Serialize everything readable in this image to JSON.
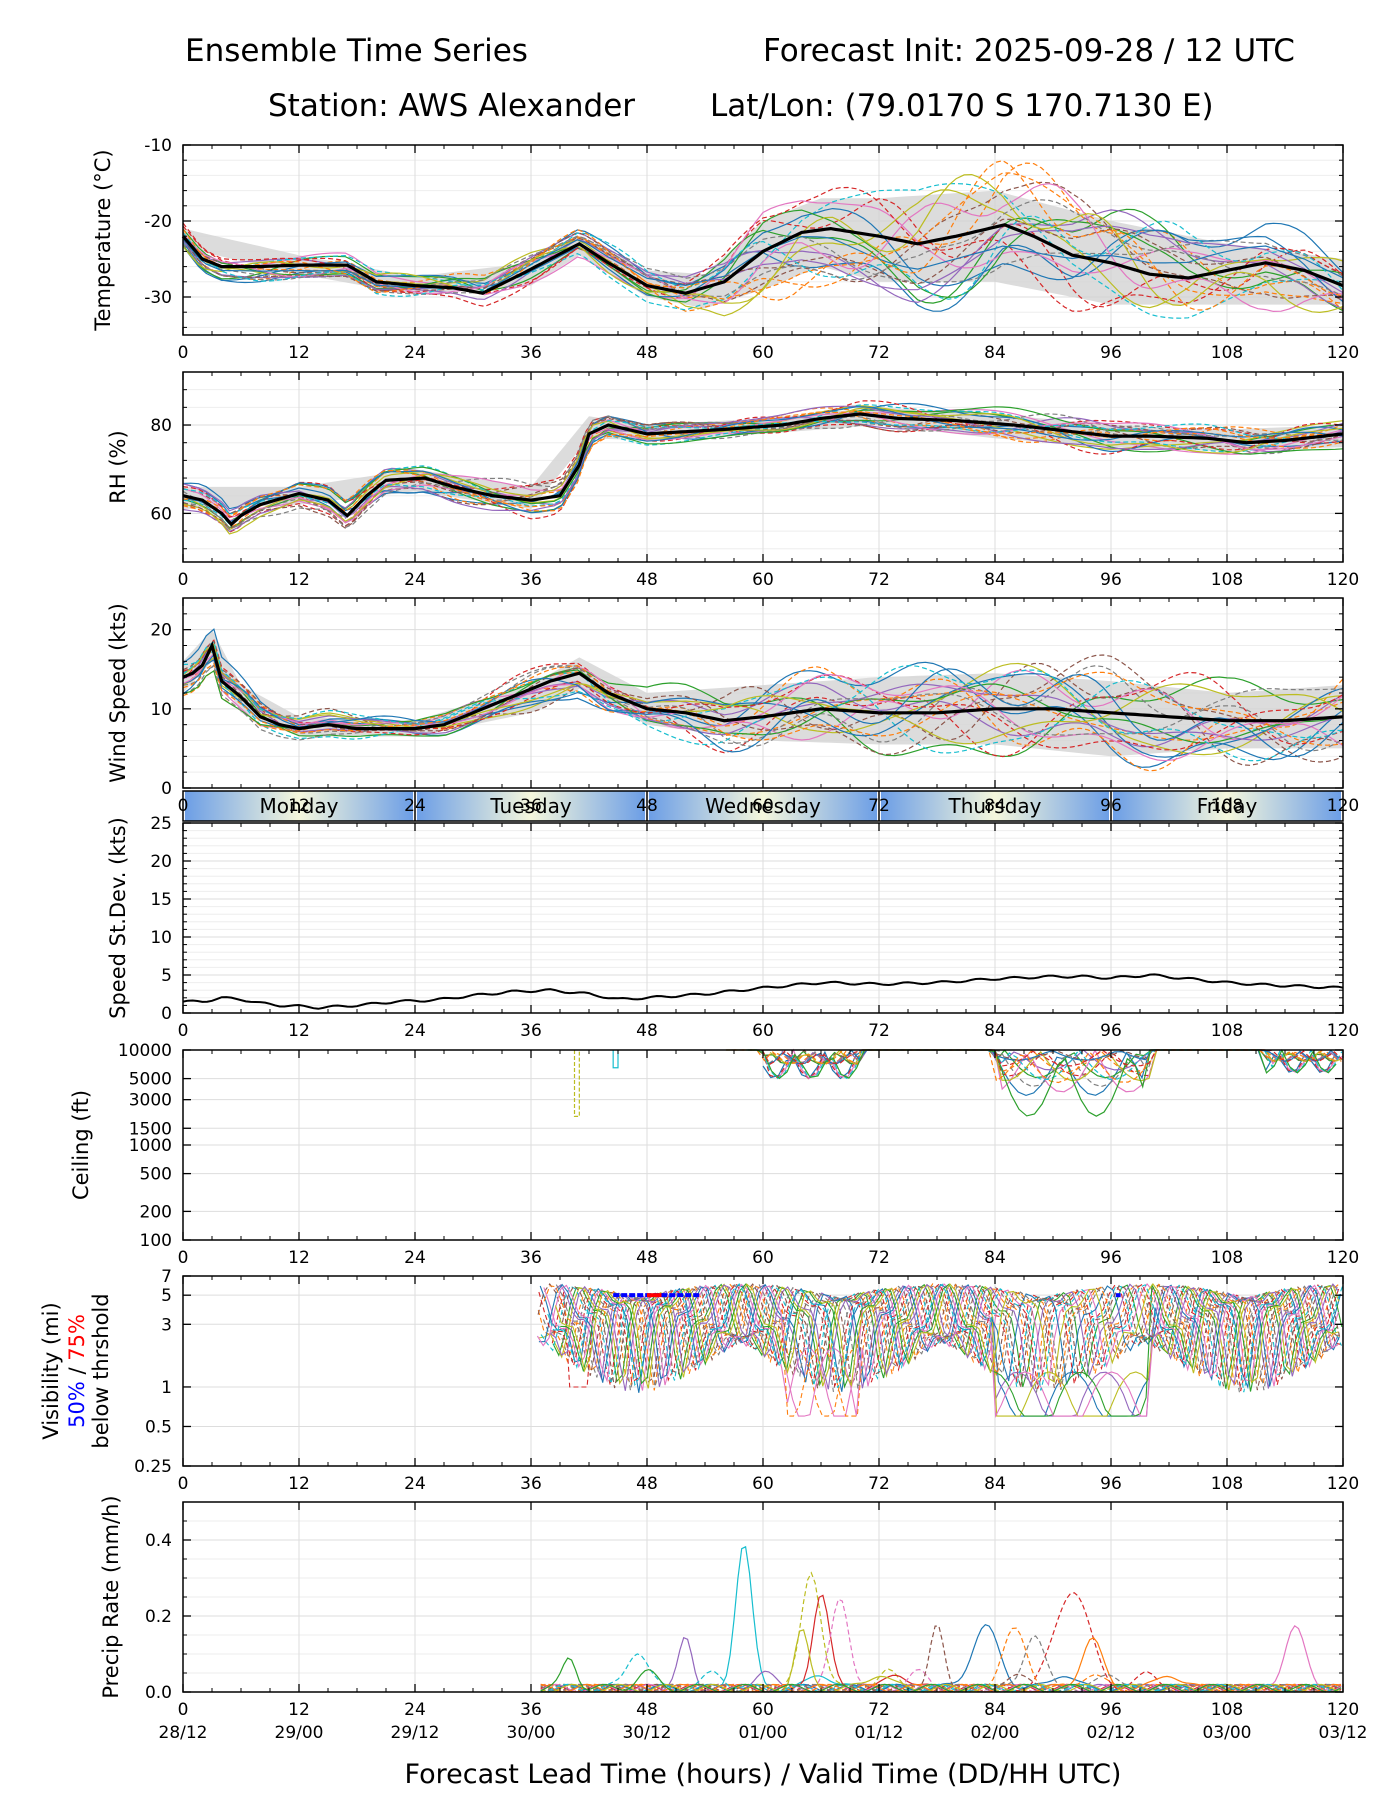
{
  "header": {
    "title": "Ensemble Time Series",
    "init": "Forecast Init: 2025-09-28 / 12 UTC",
    "station": "Station: AWS Alexander",
    "latlon": "Lat/Lon: (79.0170 S 170.7130 E)"
  },
  "x_axis": {
    "range": [
      0,
      120
    ],
    "lead_ticks": [
      "0",
      "12",
      "24",
      "36",
      "48",
      "60",
      "72",
      "84",
      "96",
      "108",
      "120"
    ],
    "valid_ticks": [
      "28/12",
      "29/00",
      "29/12",
      "30/00",
      "30/12",
      "01/00",
      "01/12",
      "02/00",
      "02/12",
      "03/00",
      "03/12"
    ],
    "title": "Forecast Lead Time (hours) / Valid Time (DD/HH UTC)"
  },
  "day_strip": [
    "Monday",
    "Tuesday",
    "Wednesday",
    "Thursday",
    "Friday"
  ],
  "colors": {
    "mean": "#000000",
    "spread": "#d3d3d3",
    "grid": "#dddddd",
    "p50": "#0000ff",
    "p75": "#ff0000",
    "day_edge": "#6c9ee6",
    "day_center": "#f5f7dc"
  },
  "chart_data": [
    {
      "id": "temperature",
      "type": "line",
      "ylabel": "Temperature (°C)",
      "ylim": [
        -35,
        -10
      ],
      "yticks": [
        "-10",
        "-20",
        "-30"
      ],
      "ensemble_mean": {
        "x": [
          0,
          2,
          4,
          8,
          12,
          17,
          20,
          24,
          28,
          31,
          35,
          38,
          41,
          44,
          48,
          52,
          56,
          60,
          64,
          67,
          72,
          76,
          80,
          85,
          88,
          92,
          96,
          100,
          104,
          108,
          112,
          116,
          120
        ],
        "y": [
          -22,
          -25,
          -26,
          -26,
          -25.8,
          -25.8,
          -28,
          -28.5,
          -28.8,
          -29.5,
          -27,
          -25,
          -23,
          -25.5,
          -28.5,
          -29.5,
          -28,
          -24,
          -21.5,
          -21,
          -22,
          -23,
          -22,
          -20.5,
          -22,
          -24.5,
          -25.5,
          -27,
          -27.5,
          -26.5,
          -25.5,
          -26.5,
          -28.5
        ]
      },
      "spread_upper": {
        "x": [
          0,
          12,
          24,
          36,
          41,
          48,
          54,
          60,
          66,
          72,
          84,
          96,
          108,
          120
        ],
        "y": [
          -21,
          -24.5,
          -27.3,
          -25.5,
          -22,
          -26.5,
          -27,
          -20,
          -17,
          -17,
          -16,
          -20,
          -23,
          -25
        ]
      },
      "spread_lower": {
        "x": [
          0,
          12,
          24,
          36,
          41,
          48,
          54,
          60,
          66,
          72,
          84,
          96,
          108,
          120
        ],
        "y": [
          -23.5,
          -27,
          -29.7,
          -28.5,
          -24.5,
          -30,
          -31.5,
          -29,
          -26,
          -28,
          -28,
          -31,
          -31,
          -31
        ]
      }
    },
    {
      "id": "rh",
      "type": "line",
      "ylabel": "RH (%)",
      "ylim": [
        49,
        92
      ],
      "yticks": [
        "60",
        "80"
      ],
      "ensemble_mean": {
        "x": [
          0,
          2,
          4,
          5,
          6,
          8,
          12,
          15,
          17,
          19,
          21,
          25,
          28,
          32,
          36,
          39,
          41,
          42,
          44,
          48,
          56,
          62,
          66,
          70,
          74,
          80,
          86,
          90,
          96,
          100,
          106,
          110,
          114,
          120
        ],
        "y": [
          64,
          63,
          60,
          57.5,
          59.5,
          62,
          64.5,
          63,
          59.5,
          64,
          67.5,
          68,
          66,
          64,
          63,
          64,
          71,
          78,
          80,
          78,
          79,
          80,
          81.5,
          82.5,
          81.5,
          81,
          80,
          79,
          77.5,
          77.5,
          77,
          76,
          76.5,
          78
        ]
      },
      "spread_upper": {
        "x": [
          0,
          12,
          24,
          36,
          42,
          48,
          60,
          72,
          84,
          96,
          108,
          120
        ],
        "y": [
          66,
          66,
          70,
          66,
          82,
          80,
          81.5,
          84,
          82.5,
          80,
          79,
          80
        ]
      },
      "spread_lower": {
        "x": [
          0,
          12,
          24,
          36,
          42,
          48,
          60,
          72,
          84,
          96,
          108,
          120
        ],
        "y": [
          61,
          62,
          65,
          61,
          77,
          76.5,
          78,
          80,
          77,
          75,
          74,
          75
        ]
      }
    },
    {
      "id": "wind_speed",
      "type": "line",
      "ylabel": "Wind Speed (kts)",
      "ylim": [
        0,
        24
      ],
      "yticks": [
        "0",
        "10",
        "20"
      ],
      "ensemble_mean": {
        "x": [
          0,
          1,
          2,
          3,
          4,
          6,
          8,
          10,
          12,
          15,
          18,
          21,
          24,
          27,
          30,
          34,
          38,
          41,
          44,
          48,
          52,
          56,
          60,
          66,
          72,
          78,
          84,
          90,
          96,
          102,
          108,
          114,
          120
        ],
        "y": [
          14,
          14.5,
          15.5,
          18,
          13.5,
          11.5,
          9,
          8,
          7.5,
          8,
          7.5,
          7.5,
          7.5,
          8,
          9.5,
          11.5,
          13.5,
          14.5,
          12,
          10,
          9.5,
          8.5,
          9,
          10,
          9.5,
          9.5,
          10,
          10,
          9.5,
          9,
          8.5,
          8.5,
          9
        ]
      },
      "spread_upper": {
        "x": [
          0,
          3,
          6,
          12,
          24,
          36,
          41,
          48,
          60,
          72,
          84,
          96,
          108,
          120
        ],
        "y": [
          16,
          20,
          13,
          9,
          8.5,
          13,
          16.5,
          12,
          13,
          14,
          14.5,
          13.5,
          12,
          13
        ]
      },
      "spread_lower": {
        "x": [
          0,
          3,
          6,
          12,
          24,
          36,
          41,
          48,
          60,
          72,
          84,
          96,
          108,
          120
        ],
        "y": [
          12,
          16,
          9.5,
          6.5,
          6.5,
          9.5,
          12.5,
          8,
          6,
          5.5,
          5.5,
          4,
          5,
          5
        ]
      }
    },
    {
      "id": "speed_stdev",
      "type": "line",
      "ylabel": "Speed St.Dev. (kts)",
      "ylim": [
        0,
        25
      ],
      "yticks": [
        "0",
        "5",
        "10",
        "15",
        "20",
        "25"
      ],
      "series": {
        "x": [
          0,
          2,
          4,
          6,
          8,
          10,
          12,
          14,
          18,
          22,
          26,
          30,
          34,
          38,
          42,
          45,
          48,
          54,
          60,
          66,
          72,
          78,
          84,
          90,
          93,
          96,
          100,
          104,
          108,
          112,
          116,
          120
        ],
        "y": [
          1.5,
          1.5,
          2,
          1.8,
          1.3,
          1,
          0.9,
          0.7,
          1,
          1.5,
          1.7,
          2.3,
          2.8,
          3,
          2.5,
          1.8,
          2,
          2.5,
          3.3,
          4,
          3.8,
          4,
          4.5,
          4.8,
          4.8,
          4.6,
          5,
          4.5,
          4,
          3.7,
          3.5,
          3.3
        ]
      }
    },
    {
      "id": "ceiling",
      "type": "line",
      "yscale": "log",
      "ylabel": "Ceiling (ft)",
      "ylim": [
        100,
        10000
      ],
      "yticks": [
        "100",
        "200",
        "500",
        "1000",
        "1500",
        "3000",
        "5000",
        "10000"
      ]
    },
    {
      "id": "visibility",
      "type": "line",
      "yscale": "log",
      "ylabel": "Visibility (mi)",
      "ylim": [
        0.25,
        7
      ],
      "yticks": [
        "0.25",
        "0.5",
        "1",
        "3",
        "5",
        "7"
      ],
      "threshold_label_50": "50%",
      "threshold_label_sep": " / ",
      "threshold_label_75": "75%",
      "threshold_label_rest": "below thrshold",
      "p50_segments": [
        [
          44.5,
          53.5
        ],
        [
          96.5,
          97
        ]
      ],
      "p75_segments": [
        [
          48,
          49.5
        ]
      ]
    },
    {
      "id": "precip_rate",
      "type": "line",
      "ylabel": "Precip Rate (mm/h)",
      "ylim": [
        0,
        0.5
      ],
      "yticks": [
        "0.0",
        "0.2",
        "0.4"
      ]
    }
  ]
}
